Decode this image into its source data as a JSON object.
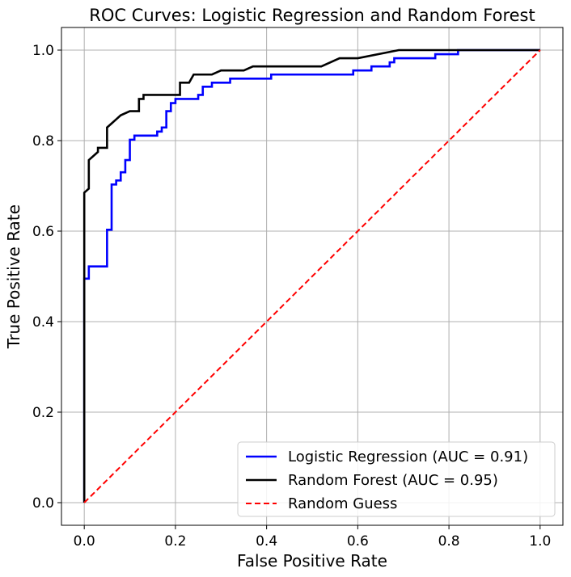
{
  "chart_data": {
    "type": "line",
    "title": "ROC Curves: Logistic Regression and Random Forest",
    "xlabel": "False Positive Rate",
    "ylabel": "True Positive Rate",
    "xlim": [
      -0.05,
      1.05
    ],
    "ylim": [
      -0.05,
      1.05
    ],
    "xticks": [
      0.0,
      0.2,
      0.4,
      0.6,
      0.8,
      1.0
    ],
    "yticks": [
      0.0,
      0.2,
      0.4,
      0.6,
      0.8,
      1.0
    ],
    "xtick_labels": [
      "0.0",
      "0.2",
      "0.4",
      "0.6",
      "0.8",
      "1.0"
    ],
    "ytick_labels": [
      "0.0",
      "0.2",
      "0.4",
      "0.6",
      "0.8",
      "1.0"
    ],
    "grid": true,
    "legend_position": "lower-right",
    "series": [
      {
        "name": "Logistic Regression (AUC = 0.91)",
        "color": "#0000ff",
        "dash": "solid",
        "step": true,
        "x": [
          0.0,
          0.0,
          0.01,
          0.01,
          0.05,
          0.05,
          0.06,
          0.06,
          0.07,
          0.07,
          0.08,
          0.08,
          0.09,
          0.09,
          0.1,
          0.1,
          0.11,
          0.11,
          0.12,
          0.12,
          0.16,
          0.16,
          0.17,
          0.17,
          0.18,
          0.18,
          0.19,
          0.19,
          0.2,
          0.2,
          0.25,
          0.25,
          0.26,
          0.26,
          0.28,
          0.28,
          0.32,
          0.32,
          0.41,
          0.41,
          0.59,
          0.59,
          0.63,
          0.63,
          0.67,
          0.67,
          0.68,
          0.68,
          0.77,
          0.77,
          0.82,
          0.82,
          1.0
        ],
        "y": [
          0.0,
          0.495,
          0.495,
          0.522,
          0.522,
          0.603,
          0.603,
          0.703,
          0.703,
          0.712,
          0.712,
          0.73,
          0.73,
          0.757,
          0.757,
          0.802,
          0.802,
          0.811,
          0.811,
          0.811,
          0.811,
          0.82,
          0.82,
          0.829,
          0.829,
          0.865,
          0.865,
          0.883,
          0.883,
          0.892,
          0.892,
          0.901,
          0.901,
          0.919,
          0.919,
          0.928,
          0.928,
          0.937,
          0.937,
          0.946,
          0.946,
          0.955,
          0.955,
          0.964,
          0.964,
          0.973,
          0.973,
          0.982,
          0.982,
          0.991,
          0.991,
          1.0,
          1.0
        ]
      },
      {
        "name": "Random Forest (AUC = 0.95)",
        "color": "#000000",
        "dash": "solid",
        "step": false,
        "x": [
          0.0,
          0.0,
          0.01,
          0.01,
          0.03,
          0.03,
          0.05,
          0.05,
          0.06,
          0.07,
          0.08,
          0.08,
          0.1,
          0.1,
          0.12,
          0.12,
          0.13,
          0.13,
          0.15,
          0.21,
          0.21,
          0.23,
          0.24,
          0.28,
          0.3,
          0.35,
          0.37,
          0.52,
          0.56,
          0.6,
          0.69,
          1.0
        ],
        "y": [
          0.0,
          0.685,
          0.694,
          0.757,
          0.775,
          0.784,
          0.784,
          0.829,
          0.838,
          0.847,
          0.856,
          0.856,
          0.865,
          0.865,
          0.865,
          0.892,
          0.892,
          0.901,
          0.901,
          0.901,
          0.928,
          0.928,
          0.946,
          0.946,
          0.955,
          0.955,
          0.964,
          0.964,
          0.982,
          0.982,
          1.0,
          1.0
        ]
      },
      {
        "name": "Random Guess",
        "color": "#ff0000",
        "dash": "dashed",
        "step": false,
        "x": [
          0.0,
          1.0
        ],
        "y": [
          0.0,
          1.0
        ]
      }
    ]
  }
}
